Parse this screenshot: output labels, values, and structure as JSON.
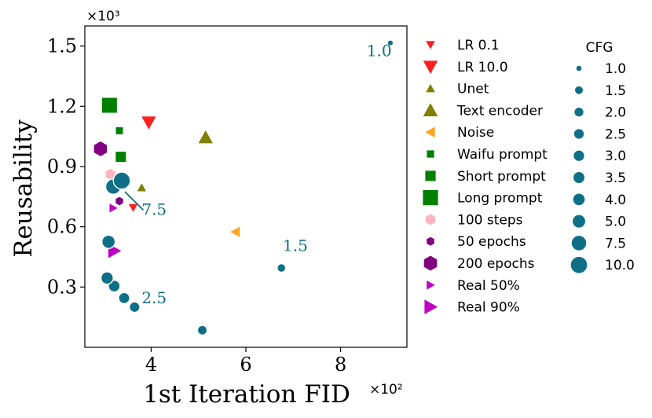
{
  "colors": {
    "teal": "#0f6f86",
    "red": "#ff1f1f",
    "olive": "#808000",
    "orange": "#ffa520",
    "green": "#008000",
    "pink": "#ffb6c1",
    "purple": "#800080",
    "magenta": "#c000c0"
  },
  "chart_data": {
    "type": "scatter",
    "xlabel": "1st Iteration FID",
    "ylabel": "Reusability",
    "x_multiplier": "×10²",
    "y_multiplier": "×10³",
    "xlim": [
      2.6,
      9.4
    ],
    "ylim": [
      0.0,
      1.6
    ],
    "x_ticks": [
      4,
      6,
      8
    ],
    "x_tick_labels": [
      "4",
      "6",
      "8"
    ],
    "y_ticks": [
      0.3,
      0.6,
      0.9,
      1.2,
      1.5
    ],
    "y_tick_labels": [
      "0.3",
      "0.6",
      "0.9",
      "1.2",
      "1.5"
    ],
    "grid": false,
    "cfg_series": {
      "name": "CFG",
      "color": "#0f6f86",
      "points": [
        {
          "cfg": 1.0,
          "x": 9.05,
          "y": 1.515
        },
        {
          "cfg": 1.5,
          "x": 6.75,
          "y": 0.395
        },
        {
          "cfg": 2.0,
          "x": 5.08,
          "y": 0.085
        },
        {
          "cfg": 2.5,
          "x": 3.65,
          "y": 0.2
        },
        {
          "cfg": 3.0,
          "x": 3.43,
          "y": 0.245
        },
        {
          "cfg": 3.5,
          "x": 3.22,
          "y": 0.305
        },
        {
          "cfg": 4.0,
          "x": 3.07,
          "y": 0.345
        },
        {
          "cfg": 5.0,
          "x": 3.1,
          "y": 0.525
        },
        {
          "cfg": 7.5,
          "x": 3.2,
          "y": 0.8
        },
        {
          "cfg": 10.0,
          "x": 3.38,
          "y": 0.83
        }
      ]
    },
    "annotations": [
      {
        "text": "1.0",
        "x": 8.55,
        "y": 1.45,
        "ax": 9.05,
        "ay": 1.515,
        "arrow": false
      },
      {
        "text": "1.5",
        "x": 6.78,
        "y": 0.48,
        "ax": 6.75,
        "ay": 0.395,
        "arrow": false
      },
      {
        "text": "2.5",
        "x": 3.8,
        "y": 0.22,
        "ax": 3.65,
        "ay": 0.2,
        "arrow": false
      },
      {
        "text": "7.5",
        "x": 3.8,
        "y": 0.66,
        "ax": 3.38,
        "ay": 0.79,
        "arrow": true
      }
    ],
    "series": [
      {
        "name": "LR 0.1",
        "marker": "tri-down",
        "color": "#ff1f1f",
        "size": 13,
        "points": [
          {
            "x": 3.62,
            "y": 0.695
          }
        ]
      },
      {
        "name": "LR 10.0",
        "marker": "tri-down",
        "color": "#ff1f1f",
        "size": 20,
        "points": [
          {
            "x": 3.95,
            "y": 1.12
          }
        ]
      },
      {
        "name": "Unet",
        "marker": "tri-up",
        "color": "#808000",
        "size": 13,
        "points": [
          {
            "x": 3.8,
            "y": 0.795
          }
        ]
      },
      {
        "name": "Text encoder",
        "marker": "tri-up",
        "color": "#808000",
        "size": 20,
        "points": [
          {
            "x": 5.15,
            "y": 1.045
          }
        ]
      },
      {
        "name": "Noise",
        "marker": "tri-left",
        "color": "#ffa520",
        "size": 15,
        "points": [
          {
            "x": 5.78,
            "y": 0.575
          }
        ]
      },
      {
        "name": "Waifu prompt",
        "marker": "square",
        "color": "#008000",
        "size": 10,
        "points": [
          {
            "x": 3.33,
            "y": 1.078
          }
        ]
      },
      {
        "name": "Short prompt",
        "marker": "square",
        "color": "#008000",
        "size": 14,
        "points": [
          {
            "x": 3.36,
            "y": 0.948
          }
        ]
      },
      {
        "name": "Long prompt",
        "marker": "square",
        "color": "#008000",
        "size": 20,
        "points": [
          {
            "x": 3.12,
            "y": 1.205
          }
        ]
      },
      {
        "name": "100 steps",
        "marker": "hexagon",
        "color": "#ffb6c1",
        "size": 15,
        "points": [
          {
            "x": 3.14,
            "y": 0.862
          }
        ]
      },
      {
        "name": "50 epochs",
        "marker": "hexagon",
        "color": "#800080",
        "size": 12,
        "points": [
          {
            "x": 3.33,
            "y": 0.728
          }
        ]
      },
      {
        "name": "200 epochs",
        "marker": "hexagon",
        "color": "#800080",
        "size": 20,
        "points": [
          {
            "x": 2.93,
            "y": 0.988
          }
        ]
      },
      {
        "name": "Real 50%",
        "marker": "tri-right",
        "color": "#c000c0",
        "size": 13,
        "points": [
          {
            "x": 3.2,
            "y": 0.693
          }
        ]
      },
      {
        "name": "Real 90%",
        "marker": "tri-right",
        "color": "#c000c0",
        "size": 20,
        "points": [
          {
            "x": 3.22,
            "y": 0.48
          }
        ]
      }
    ]
  }
}
